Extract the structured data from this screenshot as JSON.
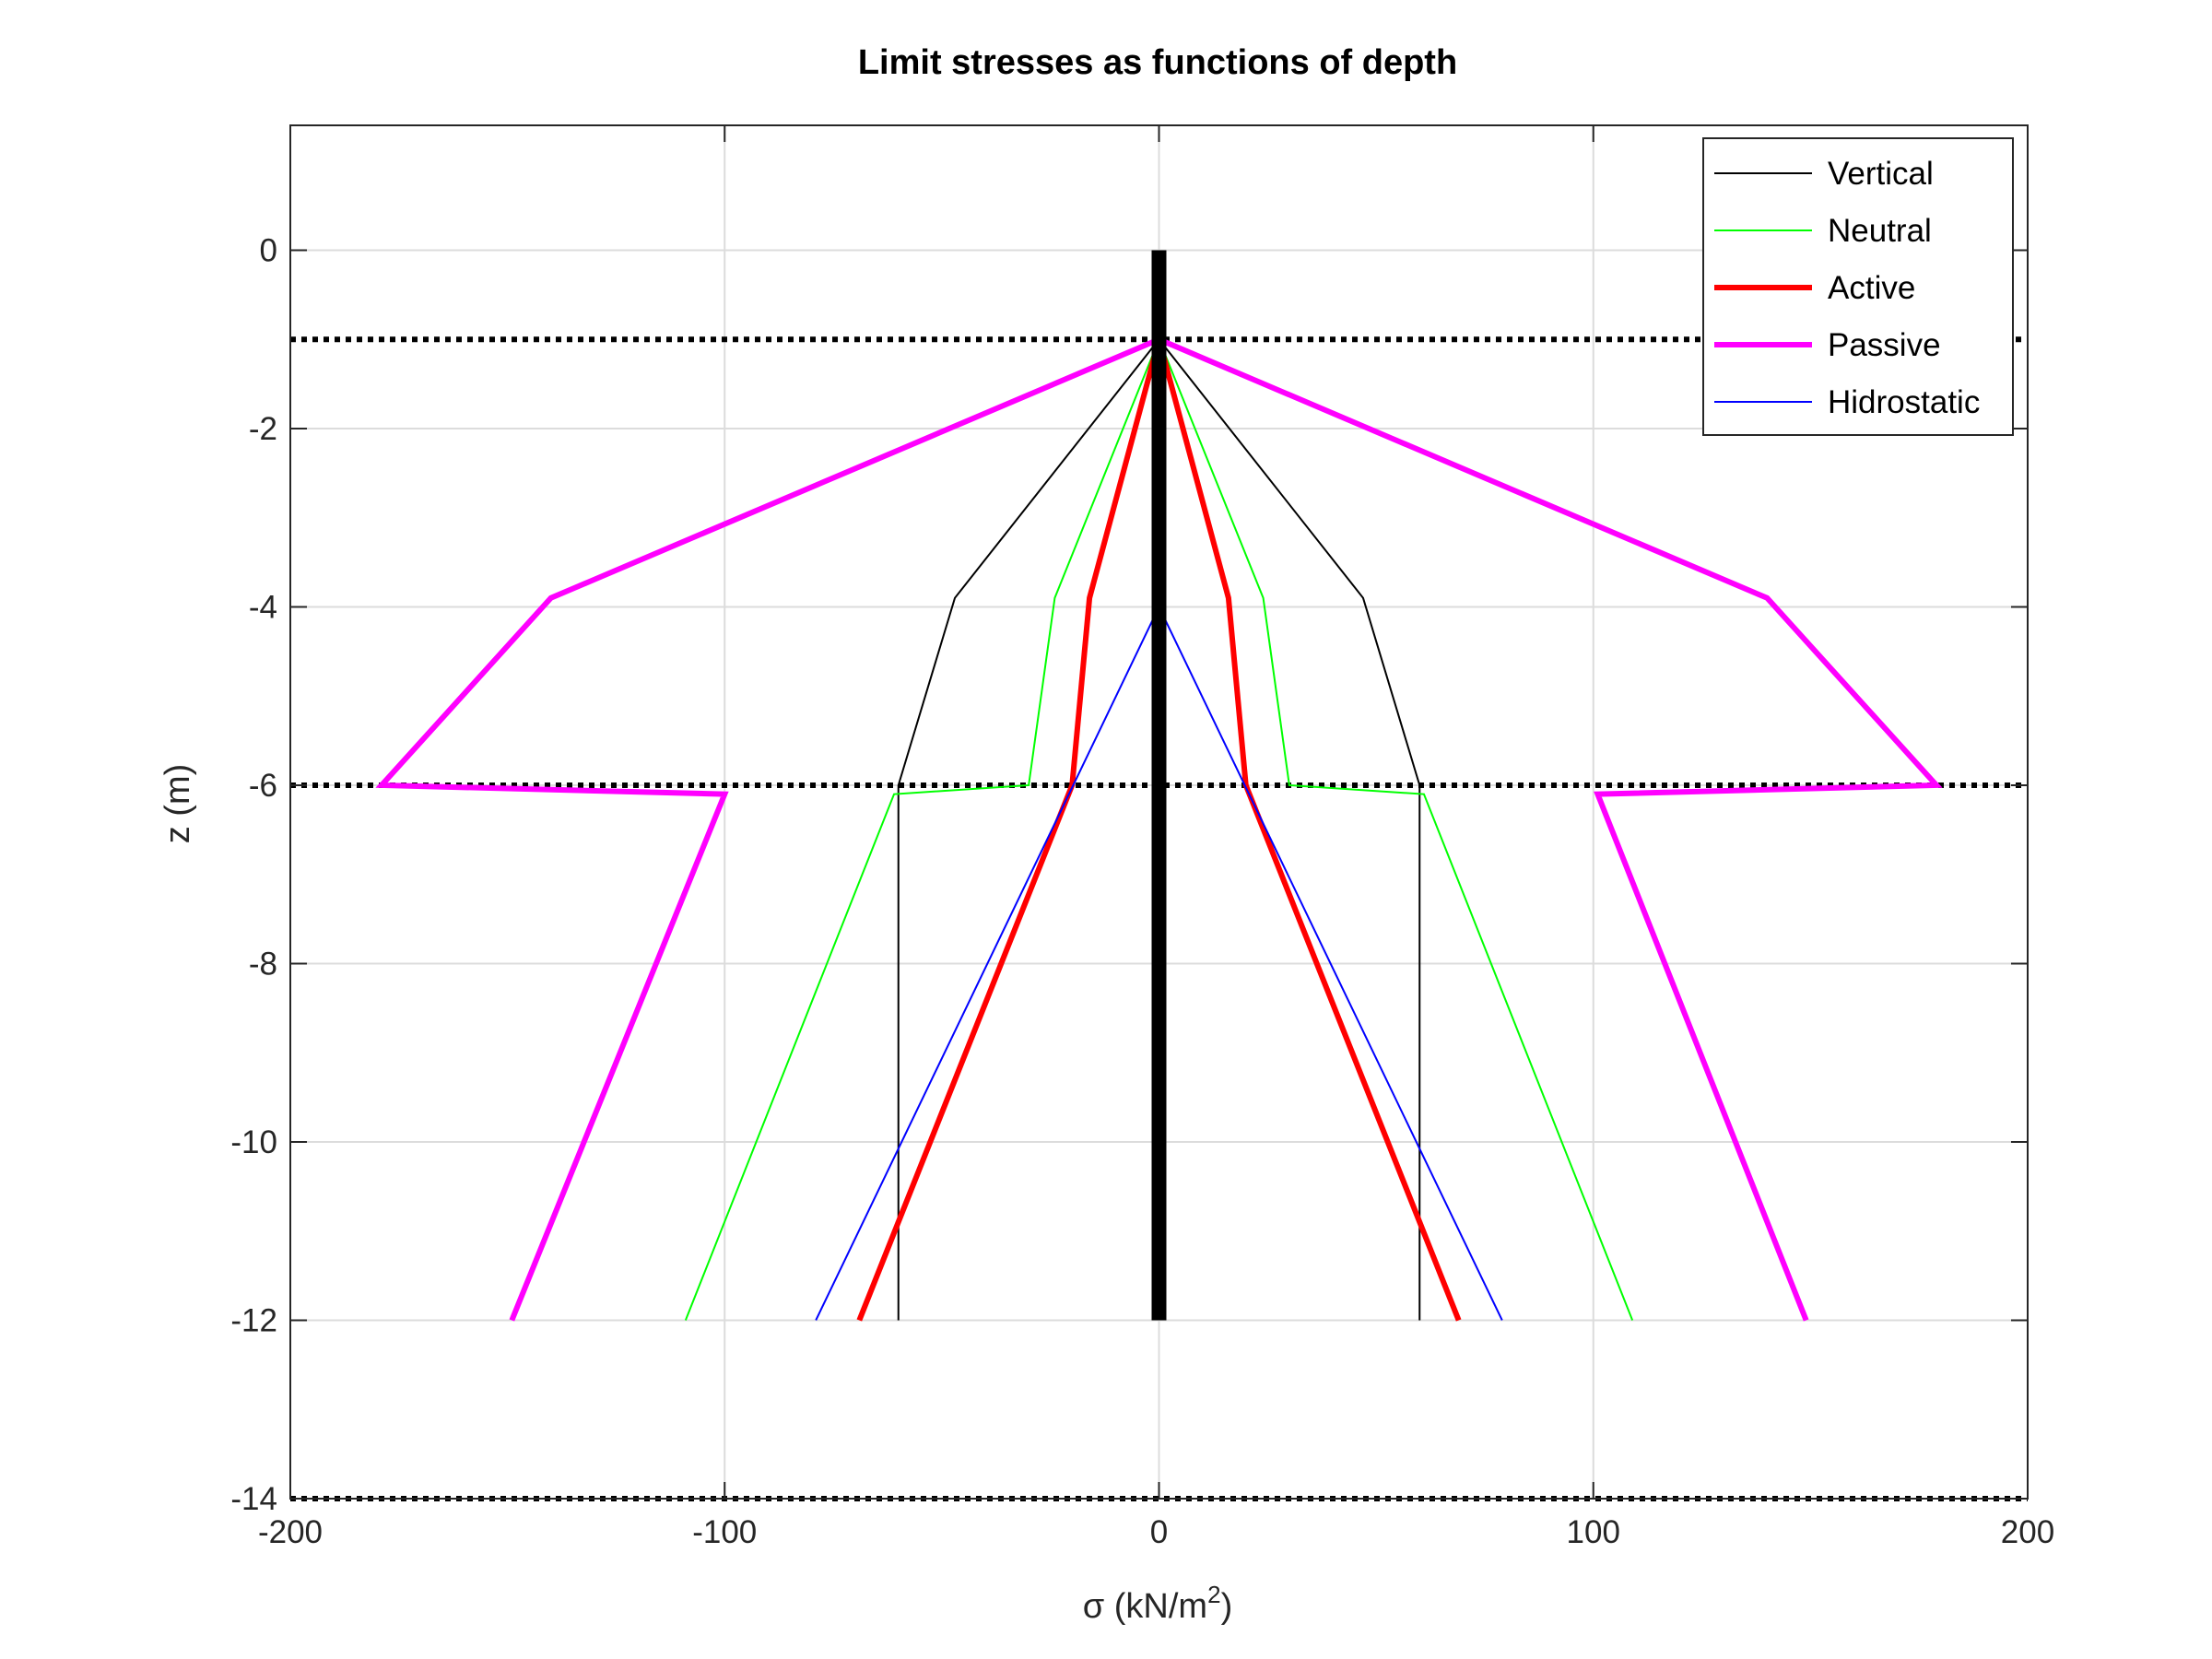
{
  "chart_data": {
    "type": "line",
    "title": "Limit stresses as functions of depth",
    "xlabel": {
      "prefix": "σ (kN/m",
      "sup": "2",
      "suffix": ")"
    },
    "ylabel": "z (m)",
    "xlim": [
      -200,
      200
    ],
    "ylim": [
      -14,
      1.4
    ],
    "xticks": [
      -200,
      -100,
      0,
      100,
      200
    ],
    "yticks": [
      0,
      -2,
      -4,
      -6,
      -8,
      -10,
      -12,
      -14
    ],
    "grid": true,
    "legend_position": "top-right",
    "layer_boundaries": [
      -1,
      -6,
      -14
    ],
    "wall": {
      "x": 0,
      "y_from": 0,
      "y_to": -12,
      "color": "#000000"
    },
    "series": [
      {
        "name": "Vertical",
        "color": "#000000",
        "width": 2,
        "segments": [
          [
            [
              0,
              -1
            ],
            [
              -47,
              -3.9
            ],
            [
              -60,
              -6
            ],
            [
              -60,
              -12
            ]
          ],
          [
            [
              0,
              -1
            ],
            [
              47,
              -3.9
            ],
            [
              60,
              -6
            ],
            [
              60,
              -12
            ]
          ]
        ]
      },
      {
        "name": "Neutral",
        "color": "#00ff00",
        "width": 2,
        "segments": [
          [
            [
              0,
              -1
            ],
            [
              -24,
              -3.9
            ],
            [
              -30,
              -6
            ],
            [
              -61,
              -6.1
            ],
            [
              -109,
              -12
            ]
          ],
          [
            [
              0,
              -1
            ],
            [
              24,
              -3.9
            ],
            [
              30,
              -6
            ],
            [
              61,
              -6.1
            ],
            [
              109,
              -12
            ]
          ]
        ]
      },
      {
        "name": "Active",
        "color": "#ff0000",
        "width": 6,
        "segments": [
          [
            [
              0,
              -1
            ],
            [
              -16,
              -3.9
            ],
            [
              -20,
              -6
            ],
            [
              -69,
              -12
            ]
          ],
          [
            [
              0,
              -1
            ],
            [
              16,
              -3.9
            ],
            [
              20,
              -6
            ],
            [
              69,
              -12
            ]
          ]
        ]
      },
      {
        "name": "Passive",
        "color": "#ff00ff",
        "width": 6,
        "segments": [
          [
            [
              0,
              -1
            ],
            [
              -140,
              -3.9
            ],
            [
              -179,
              -6
            ],
            [
              -100,
              -6.1
            ],
            [
              -149,
              -12
            ]
          ],
          [
            [
              0,
              -1
            ],
            [
              140,
              -3.9
            ],
            [
              179,
              -6
            ],
            [
              101,
              -6.1
            ],
            [
              149,
              -12
            ]
          ]
        ]
      },
      {
        "name": "Hidrostatic",
        "color": "#0000ff",
        "width": 2,
        "segments": [
          [
            [
              0,
              -4
            ],
            [
              -79,
              -12
            ]
          ],
          [
            [
              0,
              -4
            ],
            [
              79,
              -12
            ]
          ]
        ]
      }
    ]
  }
}
